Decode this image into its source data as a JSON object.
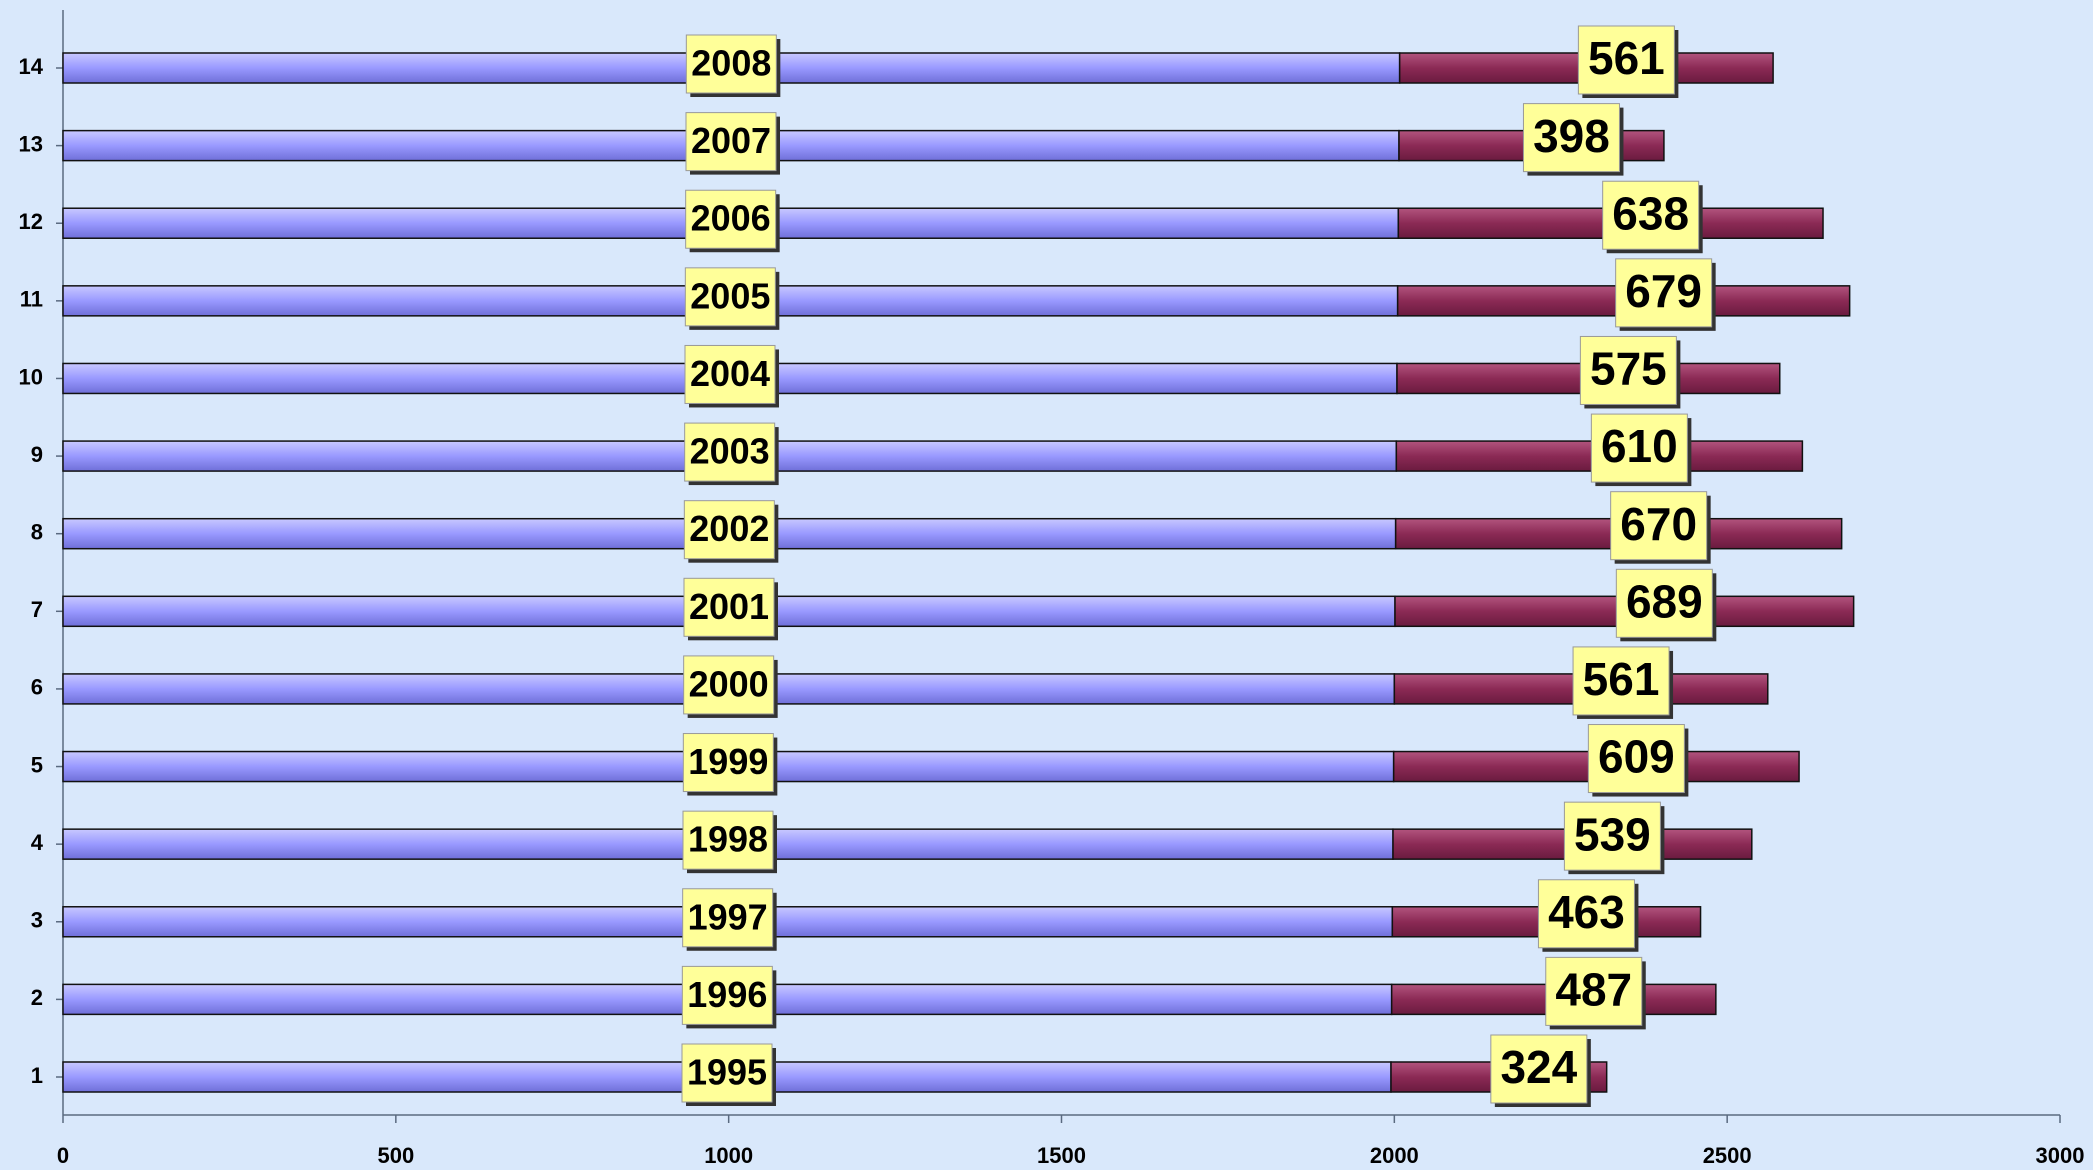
{
  "chart_data": {
    "type": "stacked-bar-horizontal",
    "categories": [
      "1",
      "2",
      "3",
      "4",
      "5",
      "6",
      "7",
      "8",
      "9",
      "10",
      "11",
      "12",
      "13",
      "14"
    ],
    "series": [
      {
        "color": "#9999ff",
        "values": [
          1995,
          1996,
          1997,
          1998,
          1999,
          2000,
          2001,
          2002,
          2003,
          2004,
          2005,
          2006,
          2007,
          2008
        ]
      },
      {
        "color": "#8b2a55",
        "values": [
          324,
          487,
          463,
          539,
          609,
          561,
          689,
          670,
          610,
          575,
          679,
          638,
          398,
          561
        ]
      }
    ],
    "xlim": [
      0,
      3000
    ],
    "xticks": [
      0,
      500,
      1000,
      1500,
      2000,
      2500,
      3000
    ]
  }
}
